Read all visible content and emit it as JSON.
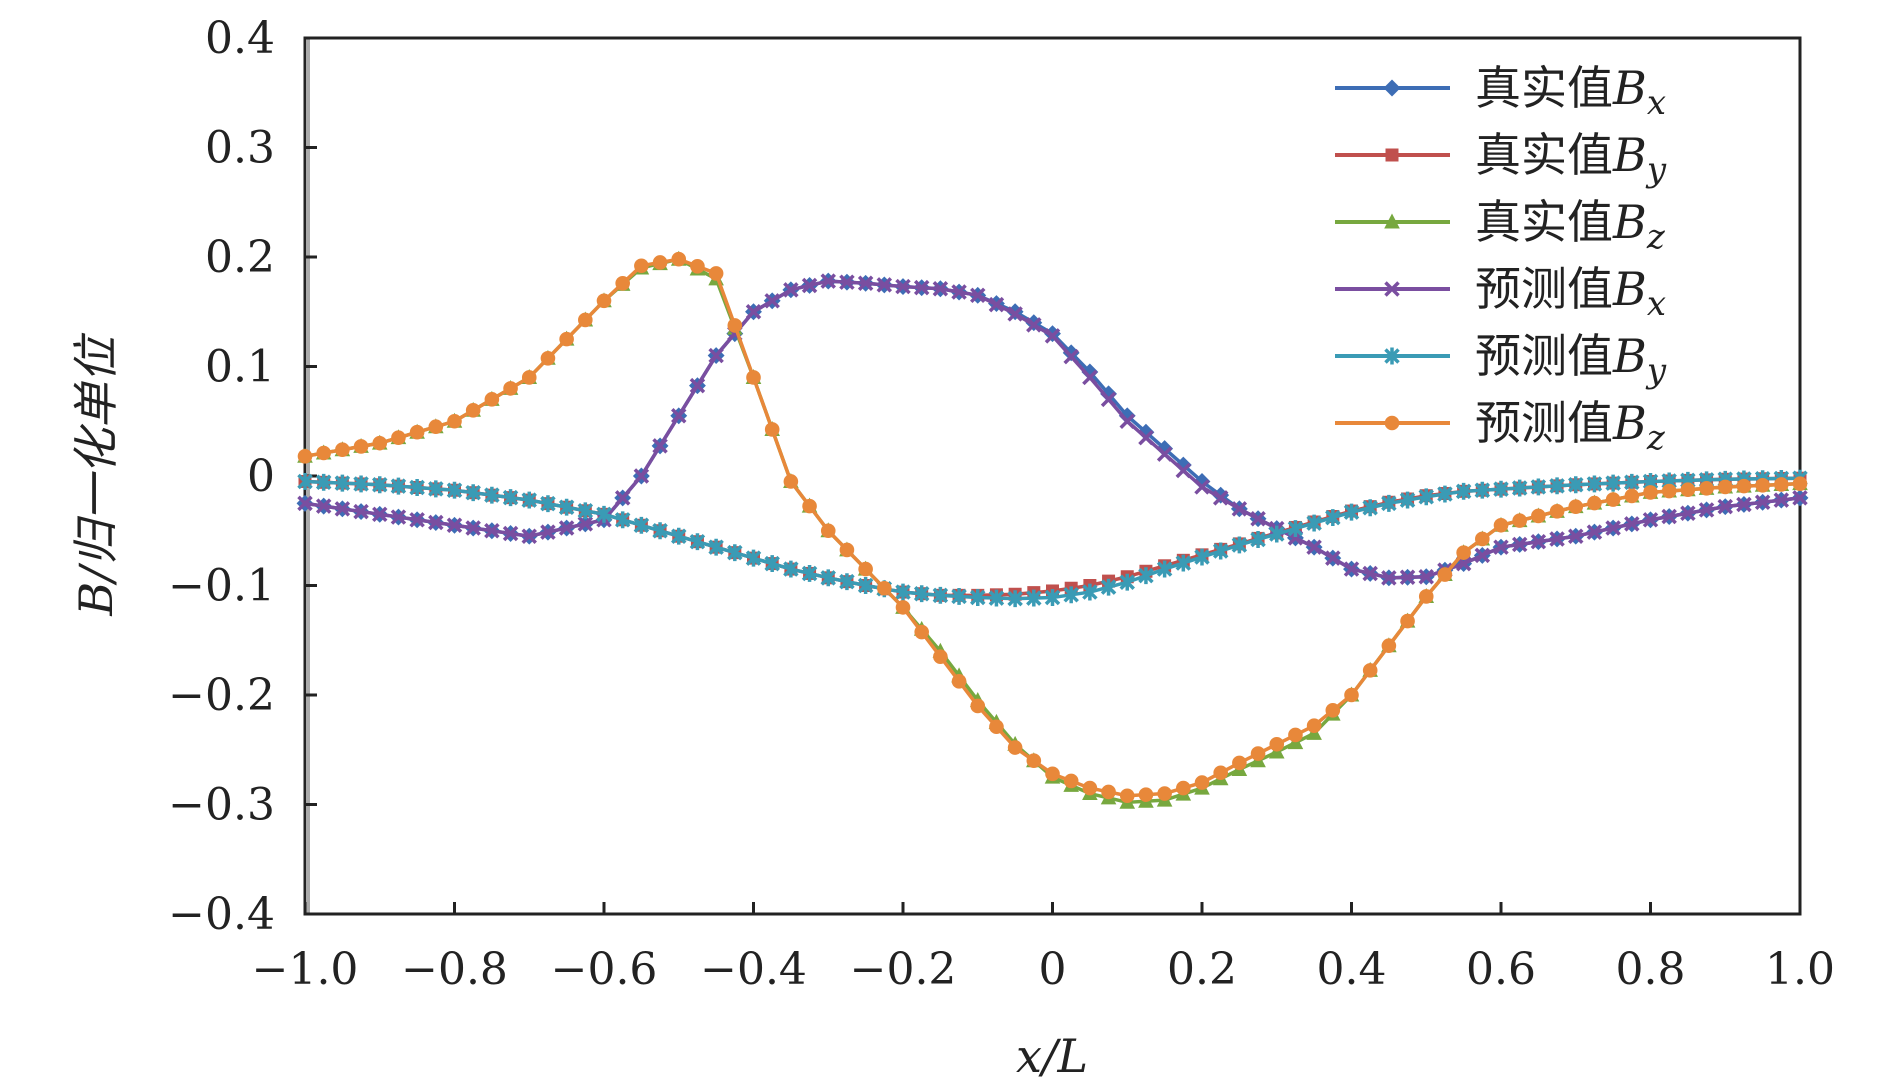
{
  "chart_data": {
    "type": "line",
    "title": "",
    "xlabel": "x/L",
    "ylabel": "B/归一化单位",
    "xlim": [
      -1.0,
      1.0
    ],
    "ylim": [
      -0.4,
      0.4
    ],
    "x_ticks": [
      -1.0,
      -0.8,
      -0.6,
      -0.4,
      -0.2,
      0,
      0.2,
      0.4,
      0.6,
      0.8,
      1.0
    ],
    "x_tick_labels": [
      "−1.0",
      "−0.8",
      "−0.6",
      "−0.4",
      "−0.2",
      "0",
      "0.2",
      "0.4",
      "0.6",
      "0.8",
      "1.0"
    ],
    "y_ticks": [
      0.4,
      0.3,
      0.2,
      0.1,
      0,
      -0.1,
      -0.2,
      -0.3,
      -0.4
    ],
    "y_tick_labels": [
      "0.4",
      "0.3",
      "0.2",
      "0.1",
      "0",
      "−0.1",
      "−0.2",
      "−0.3",
      "−0.4"
    ],
    "grid": false,
    "legend_position": "top-right",
    "x": [
      -1.0,
      -0.9,
      -0.8,
      -0.7,
      -0.6,
      -0.55,
      -0.5,
      -0.45,
      -0.4,
      -0.35,
      -0.3,
      -0.25,
      -0.2,
      -0.15,
      -0.1,
      -0.05,
      0.0,
      0.05,
      0.1,
      0.15,
      0.2,
      0.25,
      0.3,
      0.35,
      0.4,
      0.45,
      0.5,
      0.55,
      0.6,
      0.7,
      0.8,
      0.9,
      1.0
    ],
    "series": [
      {
        "name": "真实值Bx",
        "label": "真实值",
        "sub": "x",
        "color": "#3d6db5",
        "marker": "diamond",
        "values": [
          -0.025,
          -0.035,
          -0.045,
          -0.055,
          -0.04,
          0.0,
          0.055,
          0.11,
          0.15,
          0.17,
          0.178,
          0.176,
          0.173,
          0.171,
          0.165,
          0.15,
          0.13,
          0.095,
          0.055,
          0.025,
          -0.005,
          -0.03,
          -0.048,
          -0.065,
          -0.085,
          -0.093,
          -0.092,
          -0.08,
          -0.065,
          -0.055,
          -0.04,
          -0.028,
          -0.02
        ]
      },
      {
        "name": "真实值By",
        "label": "真实值",
        "sub": "y",
        "color": "#c0504d",
        "marker": "square",
        "values": [
          -0.005,
          -0.008,
          -0.013,
          -0.022,
          -0.035,
          -0.045,
          -0.055,
          -0.065,
          -0.075,
          -0.085,
          -0.093,
          -0.1,
          -0.106,
          -0.109,
          -0.109,
          -0.108,
          -0.105,
          -0.1,
          -0.092,
          -0.082,
          -0.072,
          -0.062,
          -0.052,
          -0.042,
          -0.032,
          -0.024,
          -0.018,
          -0.014,
          -0.012,
          -0.008,
          -0.005,
          -0.003,
          -0.002
        ]
      },
      {
        "name": "真实值Bz",
        "label": "真实值",
        "sub": "z",
        "color": "#77a83f",
        "marker": "triangle",
        "values": [
          0.018,
          0.03,
          0.05,
          0.09,
          0.16,
          0.19,
          0.198,
          0.18,
          0.09,
          -0.005,
          -0.05,
          -0.085,
          -0.12,
          -0.16,
          -0.205,
          -0.245,
          -0.275,
          -0.29,
          -0.298,
          -0.296,
          -0.285,
          -0.268,
          -0.252,
          -0.235,
          -0.2,
          -0.155,
          -0.11,
          -0.07,
          -0.045,
          -0.028,
          -0.015,
          -0.01,
          -0.007
        ]
      },
      {
        "name": "预测值Bx",
        "label": "预测值",
        "sub": "x",
        "color": "#7a4ea0",
        "marker": "x",
        "values": [
          -0.025,
          -0.035,
          -0.045,
          -0.055,
          -0.04,
          0.0,
          0.055,
          0.11,
          0.15,
          0.17,
          0.178,
          0.176,
          0.173,
          0.171,
          0.165,
          0.148,
          0.128,
          0.09,
          0.05,
          0.02,
          -0.01,
          -0.03,
          -0.048,
          -0.065,
          -0.085,
          -0.093,
          -0.092,
          -0.08,
          -0.065,
          -0.055,
          -0.04,
          -0.028,
          -0.02
        ]
      },
      {
        "name": "预测值By",
        "label": "预测值",
        "sub": "y",
        "color": "#3a9bb5",
        "marker": "star",
        "values": [
          -0.005,
          -0.008,
          -0.013,
          -0.022,
          -0.035,
          -0.045,
          -0.055,
          -0.065,
          -0.075,
          -0.085,
          -0.093,
          -0.1,
          -0.106,
          -0.109,
          -0.111,
          -0.112,
          -0.111,
          -0.106,
          -0.097,
          -0.085,
          -0.074,
          -0.063,
          -0.053,
          -0.043,
          -0.033,
          -0.025,
          -0.019,
          -0.014,
          -0.012,
          -0.008,
          -0.005,
          -0.003,
          -0.002
        ]
      },
      {
        "name": "预测值Bz",
        "label": "预测值",
        "sub": "z",
        "color": "#e8883a",
        "marker": "circle",
        "values": [
          0.018,
          0.03,
          0.05,
          0.09,
          0.16,
          0.192,
          0.198,
          0.185,
          0.09,
          -0.005,
          -0.05,
          -0.085,
          -0.12,
          -0.165,
          -0.21,
          -0.248,
          -0.272,
          -0.285,
          -0.292,
          -0.29,
          -0.28,
          -0.262,
          -0.245,
          -0.228,
          -0.2,
          -0.155,
          -0.11,
          -0.07,
          -0.045,
          -0.028,
          -0.015,
          -0.01,
          -0.007
        ]
      }
    ]
  }
}
